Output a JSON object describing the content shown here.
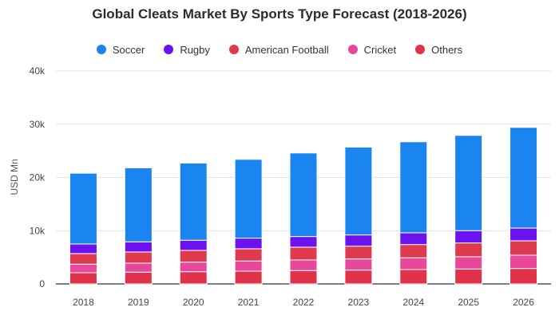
{
  "chart_data": {
    "type": "bar",
    "stacked": true,
    "title": "Global Cleats Market By Sports Type Forecast (2018-2026)",
    "xlabel": "",
    "ylabel": "USD Mn",
    "ylim": [
      0,
      40000
    ],
    "yticks": [
      0,
      10000,
      20000,
      30000,
      40000
    ],
    "ytick_labels": [
      "0",
      "10k",
      "20k",
      "30k",
      "40k"
    ],
    "grid": true,
    "legend_position": "top",
    "categories": [
      "2018",
      "2019",
      "2020",
      "2021",
      "2022",
      "2023",
      "2024",
      "2025",
      "2026"
    ],
    "series": [
      {
        "name": "Others",
        "color": "#e0324a",
        "values": [
          2100,
          2200,
          2300,
          2400,
          2500,
          2600,
          2700,
          2800,
          2900
        ]
      },
      {
        "name": "Cricket",
        "color": "#e9479a",
        "values": [
          1600,
          1700,
          1800,
          1900,
          2000,
          2100,
          2200,
          2300,
          2500
        ]
      },
      {
        "name": "American Football",
        "color": "#e03a4f",
        "values": [
          2000,
          2100,
          2200,
          2300,
          2400,
          2400,
          2500,
          2600,
          2700
        ]
      },
      {
        "name": "Rugby",
        "color": "#6a12f0",
        "values": [
          1800,
          1900,
          1900,
          2000,
          2000,
          2100,
          2200,
          2300,
          2400
        ]
      },
      {
        "name": "Soccer",
        "color": "#1a84f0",
        "values": [
          13300,
          13900,
          14500,
          14800,
          15700,
          16500,
          17100,
          17900,
          18900
        ]
      }
    ]
  },
  "legend": [
    {
      "label": "Soccer",
      "color": "#1a84f0"
    },
    {
      "label": "Rugby",
      "color": "#6a12f0"
    },
    {
      "label": "American Football",
      "color": "#e03a4f"
    },
    {
      "label": "Cricket",
      "color": "#e9479a"
    },
    {
      "label": "Others",
      "color": "#e0324a"
    }
  ]
}
